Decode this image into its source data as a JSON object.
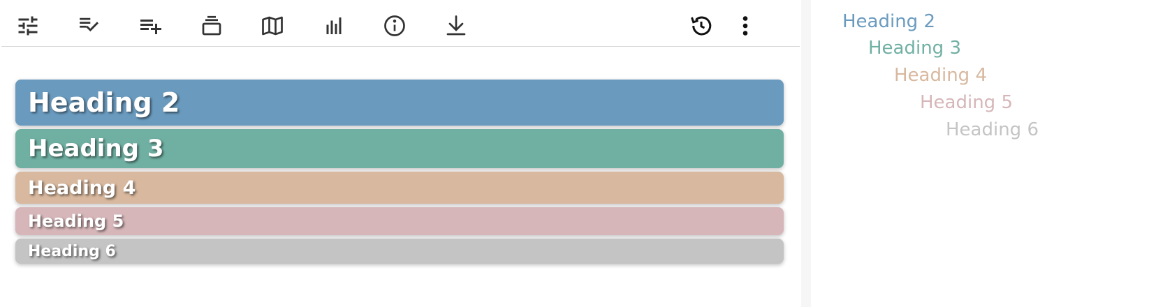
{
  "toolbar": {
    "buttons": [
      {
        "name": "settings-sliders-icon"
      },
      {
        "name": "playlist-check-icon"
      },
      {
        "name": "playlist-add-icon"
      },
      {
        "name": "layers-stack-icon"
      },
      {
        "name": "map-icon"
      },
      {
        "name": "bar-chart-icon"
      },
      {
        "name": "info-icon"
      },
      {
        "name": "download-icon"
      },
      {
        "name": "history-icon"
      },
      {
        "name": "more-vertical-icon"
      }
    ]
  },
  "colors": {
    "h2": "#6a9bbf",
    "h3": "#70b0a3",
    "h4": "#d8b89e",
    "h5": "#d6b6b9",
    "h6": "#c4c4c4"
  },
  "headings": [
    {
      "level": "h2",
      "label": "Heading 2"
    },
    {
      "level": "h3",
      "label": "Heading 3"
    },
    {
      "level": "h4",
      "label": "Heading 4"
    },
    {
      "level": "h5",
      "label": "Heading 5"
    },
    {
      "level": "h6",
      "label": "Heading 6"
    }
  ],
  "outline": [
    {
      "label": "Heading 2",
      "color": "#6a9bbf"
    },
    {
      "label": "Heading 3",
      "color": "#70b0a3"
    },
    {
      "label": "Heading 4",
      "color": "#d8b89e"
    },
    {
      "label": "Heading 5",
      "color": "#d6b6b9"
    },
    {
      "label": "Heading 6",
      "color": "#c4c4c4"
    }
  ]
}
